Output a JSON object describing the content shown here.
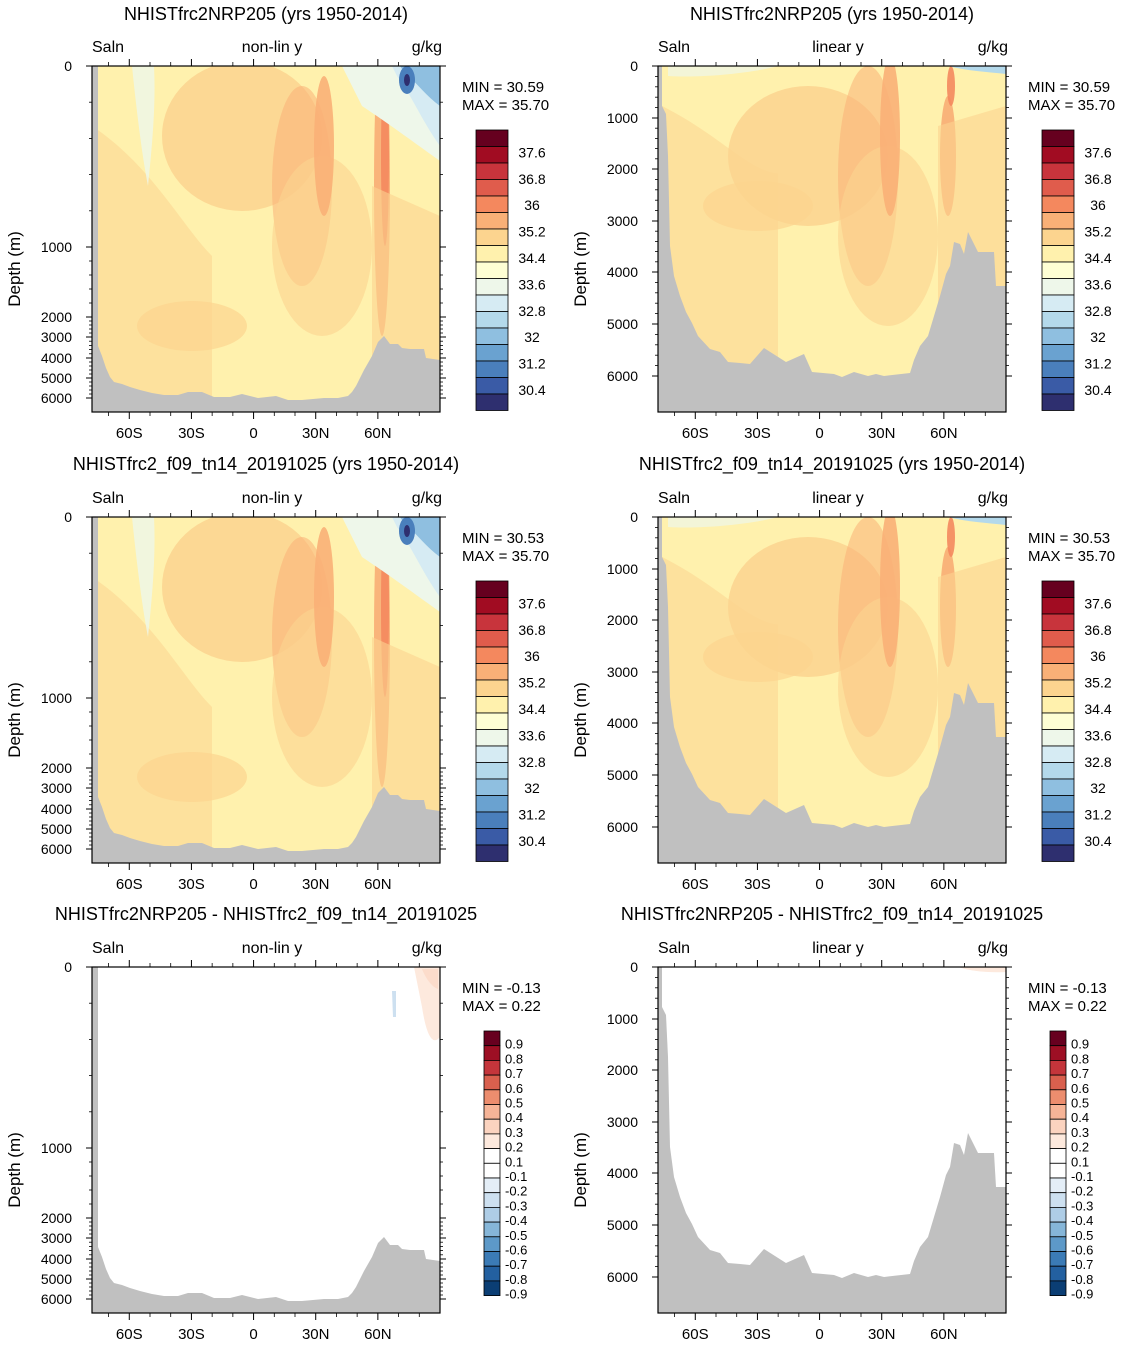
{
  "page": {
    "variable": "Saln",
    "units": "g/kg",
    "x_ticks": [
      "60S",
      "30S",
      "0",
      "30N",
      "60N"
    ],
    "y_label": "Depth (m)",
    "y_ticks_nonlin": [
      "0",
      "1000",
      "2000",
      "3000",
      "4000",
      "5000",
      "6000"
    ],
    "y_ticks_linear": [
      "0",
      "1000",
      "2000",
      "3000",
      "4000",
      "5000",
      "6000"
    ],
    "full_levels": [
      "37.6",
      "36.8",
      "36",
      "35.2",
      "34.4",
      "33.6",
      "32.8",
      "32",
      "31.2",
      "30.4"
    ],
    "diff_levels": [
      "0.9",
      "0.8",
      "0.7",
      "0.6",
      "0.5",
      "0.4",
      "0.3",
      "0.2",
      "0.1",
      "-0.1",
      "-0.2",
      "-0.3",
      "-0.4",
      "-0.5",
      "-0.6",
      "-0.7",
      "-0.8",
      "-0.9"
    ],
    "colors": {
      "land": "#c0c0c0",
      "full_palette": [
        "#66001f",
        "#a10c22",
        "#c8343c",
        "#e05c4c",
        "#f4885e",
        "#f9b077",
        "#fcd48f",
        "#fff1ad",
        "#fefed4",
        "#eef7ea",
        "#d6ebf3",
        "#b4d9eb",
        "#8fbfe0",
        "#6aa2d0",
        "#4a7fbc",
        "#3a5ba6",
        "#2e2f6f"
      ],
      "diff_palette": [
        "#67001f",
        "#9d0f24",
        "#c4353b",
        "#d9604e",
        "#ec8d6e",
        "#f6b497",
        "#fbd3bf",
        "#fde9dd",
        "#ffffff",
        "#ffffff",
        "#e4eef7",
        "#cde0f0",
        "#aecde6",
        "#86b6d8",
        "#5d99c8",
        "#3b7bb6",
        "#2360a0",
        "#0b3e74"
      ]
    }
  },
  "chart_data": [
    {
      "panel": "row1-left",
      "type": "heatmap",
      "title": "NHISTfrc2NRP205 (yrs 1950-2014)",
      "subtitle_center": "non-lin y",
      "ylabel": "Depth (m)",
      "y_scale": "non-linear",
      "x_ticks": [
        "60S",
        "30S",
        "0",
        "30N",
        "60N"
      ],
      "ylim": [
        0,
        6500
      ],
      "min_label": "MIN =  30.59",
      "max_label": "MAX =  35.70",
      "colorbar_levels": [
        "37.6",
        "36.8",
        "36",
        "35.2",
        "34.4",
        "33.6",
        "32.8",
        "32",
        "31.2",
        "30.4"
      ]
    },
    {
      "panel": "row1-right",
      "type": "heatmap",
      "title": "NHISTfrc2NRP205 (yrs 1950-2014)",
      "subtitle_center": "linear y",
      "ylabel": "Depth (m)",
      "y_scale": "linear",
      "x_ticks": [
        "60S",
        "30S",
        "0",
        "30N",
        "60N"
      ],
      "ylim": [
        0,
        6700
      ],
      "min_label": "MIN =  30.59",
      "max_label": "MAX =  35.70",
      "colorbar_levels": [
        "37.6",
        "36.8",
        "36",
        "35.2",
        "34.4",
        "33.6",
        "32.8",
        "32",
        "31.2",
        "30.4"
      ]
    },
    {
      "panel": "row2-left",
      "type": "heatmap",
      "title": "NHISTfrc2_f09_tn14_20191025 (yrs 1950-2014)",
      "subtitle_center": "non-lin y",
      "ylabel": "Depth (m)",
      "y_scale": "non-linear",
      "x_ticks": [
        "60S",
        "30S",
        "0",
        "30N",
        "60N"
      ],
      "ylim": [
        0,
        6500
      ],
      "min_label": "MIN =  30.53",
      "max_label": "MAX =  35.70",
      "colorbar_levels": [
        "37.6",
        "36.8",
        "36",
        "35.2",
        "34.4",
        "33.6",
        "32.8",
        "32",
        "31.2",
        "30.4"
      ]
    },
    {
      "panel": "row2-right",
      "type": "heatmap",
      "title": "NHISTfrc2_f09_tn14_20191025 (yrs 1950-2014)",
      "subtitle_center": "linear y",
      "ylabel": "Depth (m)",
      "y_scale": "linear",
      "x_ticks": [
        "60S",
        "30S",
        "0",
        "30N",
        "60N"
      ],
      "ylim": [
        0,
        6700
      ],
      "min_label": "MIN =  30.53",
      "max_label": "MAX =  35.70",
      "colorbar_levels": [
        "37.6",
        "36.8",
        "36",
        "35.2",
        "34.4",
        "33.6",
        "32.8",
        "32",
        "31.2",
        "30.4"
      ]
    },
    {
      "panel": "row3-left",
      "type": "heatmap",
      "title": "NHISTfrc2NRP205 - NHISTfrc2_f09_tn14_20191025",
      "subtitle_center": "non-lin y",
      "ylabel": "Depth (m)",
      "y_scale": "non-linear",
      "x_ticks": [
        "60S",
        "30S",
        "0",
        "30N",
        "60N"
      ],
      "ylim": [
        0,
        6500
      ],
      "min_label": "MIN =  -0.13",
      "max_label": "MAX =   0.22",
      "colorbar_levels": [
        "0.9",
        "0.8",
        "0.7",
        "0.6",
        "0.5",
        "0.4",
        "0.3",
        "0.2",
        "0.1",
        "-0.1",
        "-0.2",
        "-0.3",
        "-0.4",
        "-0.5",
        "-0.6",
        "-0.7",
        "-0.8",
        "-0.9"
      ]
    },
    {
      "panel": "row3-right",
      "type": "heatmap",
      "title": "NHISTfrc2NRP205 - NHISTfrc2_f09_tn14_20191025",
      "subtitle_center": "linear y",
      "ylabel": "Depth (m)",
      "y_scale": "linear",
      "x_ticks": [
        "60S",
        "30S",
        "0",
        "30N",
        "60N"
      ],
      "ylim": [
        0,
        6700
      ],
      "min_label": "MIN =  -0.13",
      "max_label": "MAX =   0.22",
      "colorbar_levels": [
        "0.9",
        "0.8",
        "0.7",
        "0.6",
        "0.5",
        "0.4",
        "0.3",
        "0.2",
        "0.1",
        "-0.1",
        "-0.2",
        "-0.3",
        "-0.4",
        "-0.5",
        "-0.6",
        "-0.7",
        "-0.8",
        "-0.9"
      ]
    }
  ]
}
